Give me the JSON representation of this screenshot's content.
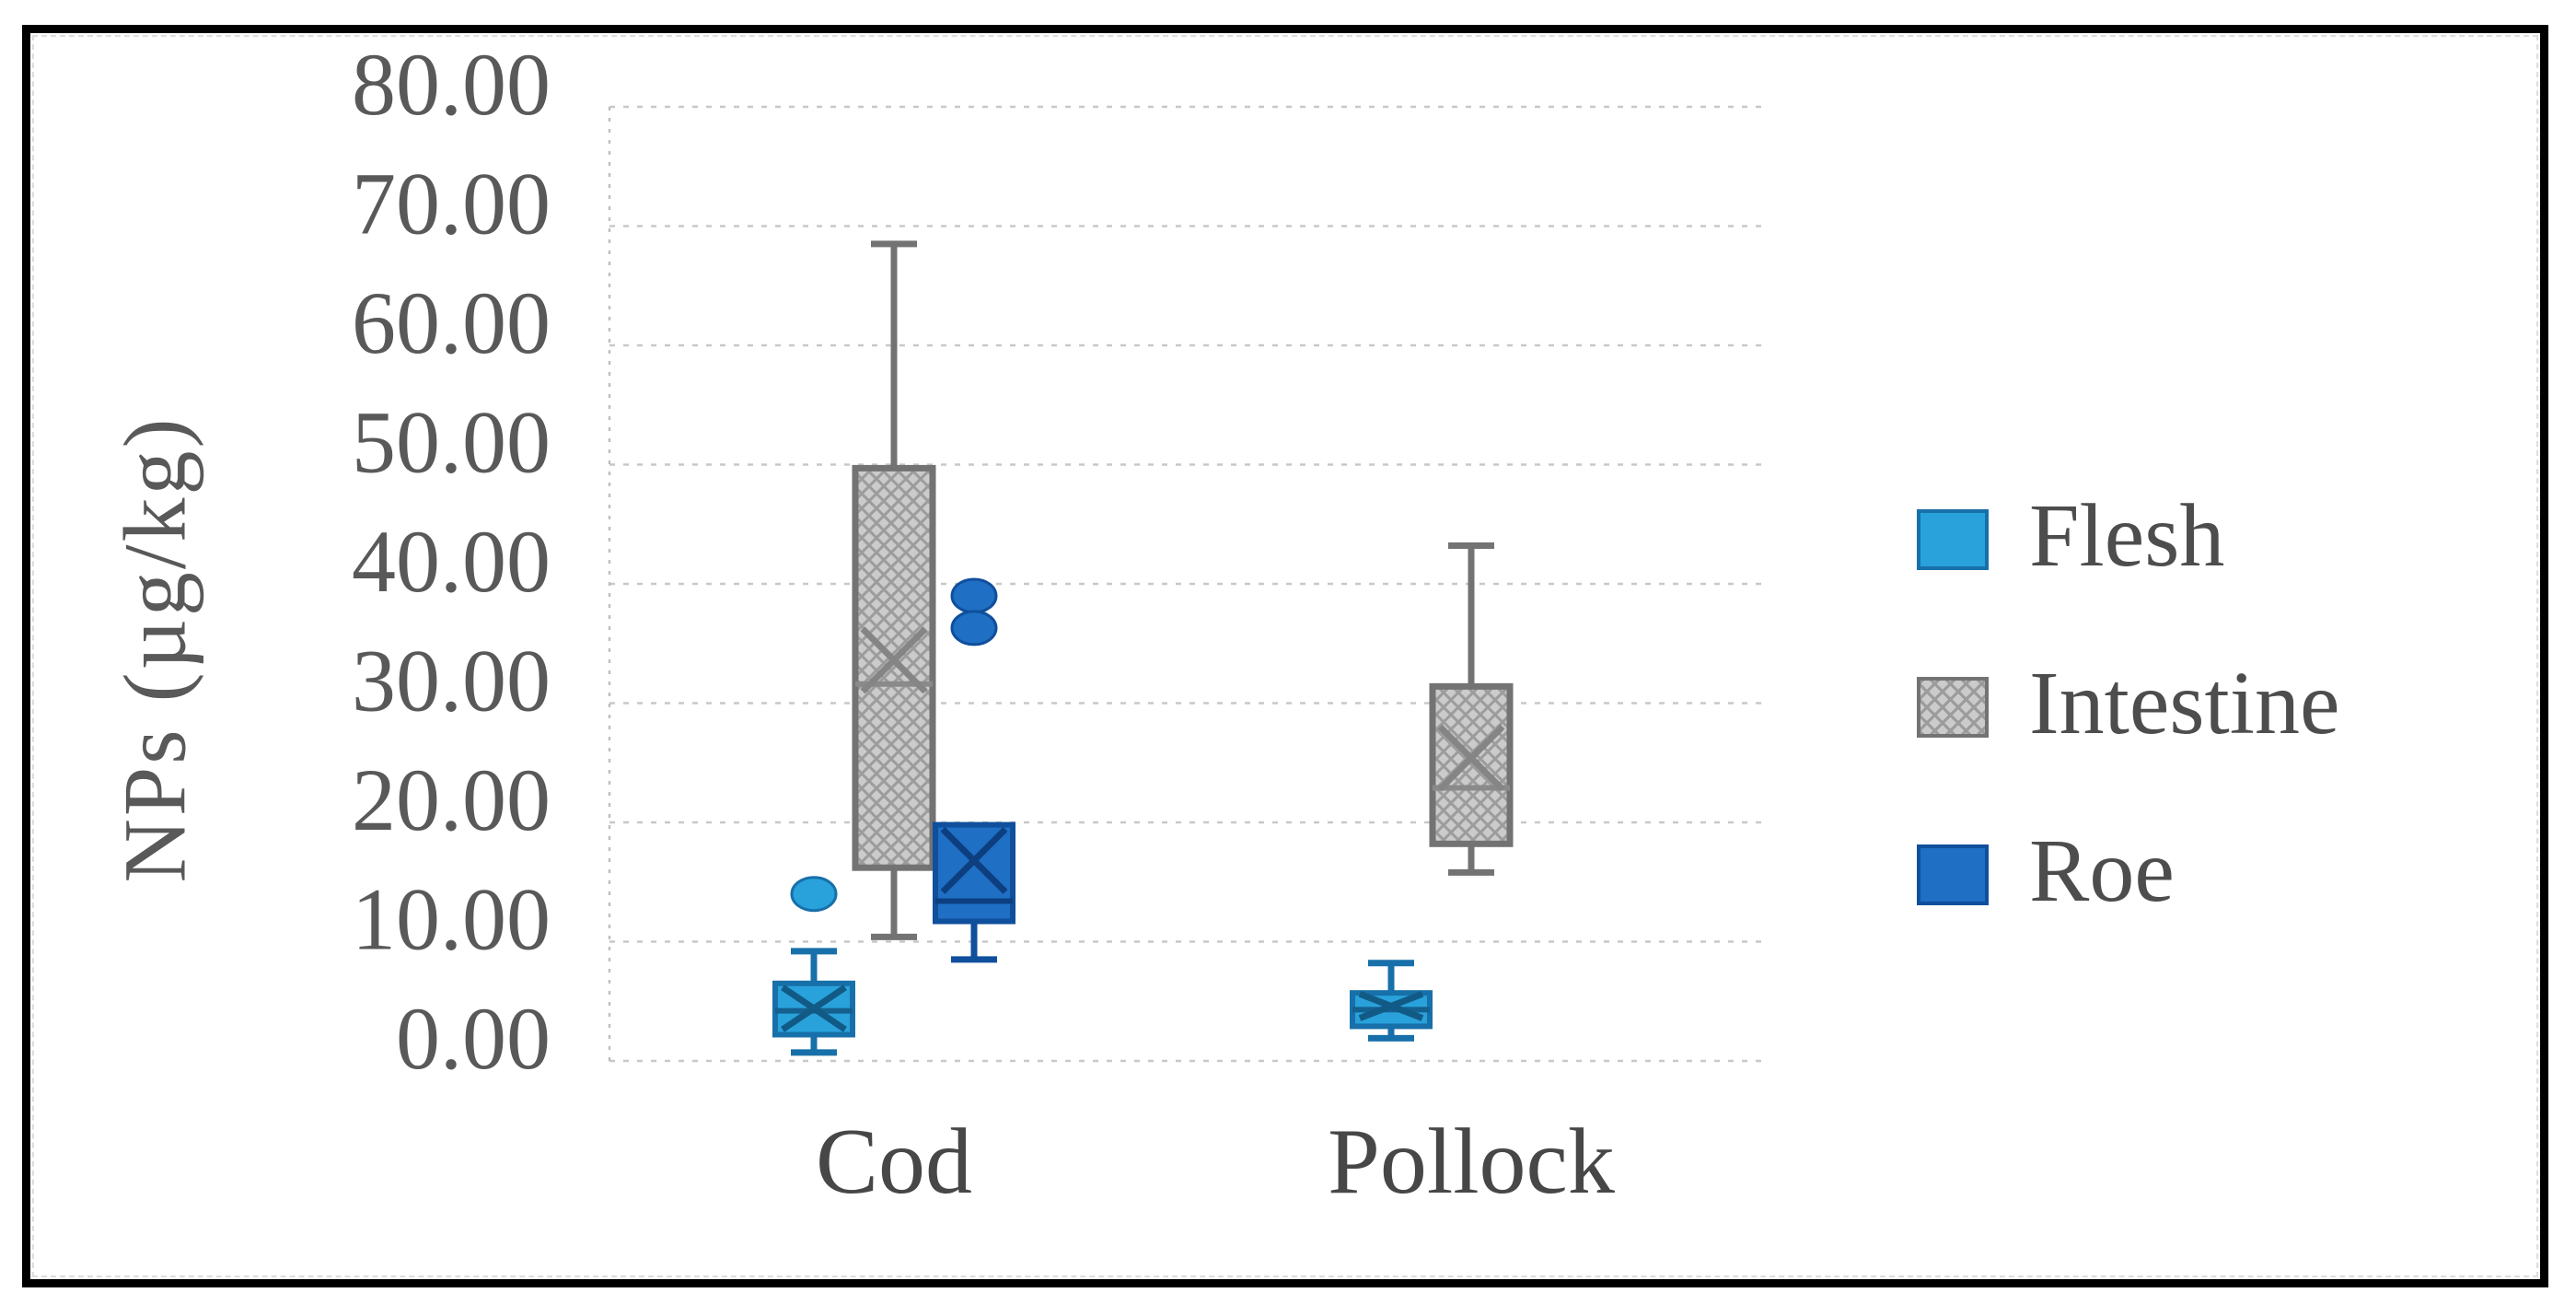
{
  "figure": {
    "background": "#ffffff",
    "border_color": "#000000"
  },
  "y_axis": {
    "title": "NPs (µg/kg)"
  },
  "x_axis": {
    "labels": [
      "Cod",
      "Pollock"
    ]
  },
  "legend": {
    "position": "right",
    "items": [
      {
        "label": "Flesh",
        "fill": "#29A2DB",
        "border": "#1770A9",
        "pattern": null,
        "hatch": null
      },
      {
        "label": "Intestine",
        "fill": "#CBCBCB",
        "border": "#737373",
        "pattern": "crosshatch",
        "hatch": "#9C9C9C"
      },
      {
        "label": "Roe",
        "fill": "#1F6FC4",
        "border": "#0F4F9C",
        "pattern": null,
        "hatch": null
      }
    ]
  },
  "colors": {
    "gridline": "#C8C8C8",
    "axis_line": "#BFBFBF",
    "tick_text": "#595959",
    "category_text": "#474747",
    "legend_text": "#4D4D4D",
    "ylabel_text": "#595959"
  },
  "chart_data": {
    "type": "box",
    "title": "",
    "xlabel": "",
    "ylabel": "NPs (µg/kg)",
    "categories": [
      "Cod",
      "Pollock"
    ],
    "ylim": [
      0,
      80
    ],
    "ytick_step": 10,
    "y_ticks": [
      "80.00",
      "70.00",
      "60.00",
      "50.00",
      "40.00",
      "30.00",
      "20.00",
      "10.00",
      "0.00"
    ],
    "grid": "horizontal-dashed",
    "legend_position": "right",
    "series": [
      {
        "name": "Flesh",
        "fill": "#29A2DB",
        "stroke": "#1770A9",
        "median_color": "#14608F",
        "mean_color": "#125A86",
        "pattern": null,
        "hatch": null,
        "boxes": [
          {
            "category": "Cod",
            "low": 0.7,
            "q1": 2.2,
            "median": 4.2,
            "mean": 4.4,
            "q3": 6.5,
            "high": 9.2,
            "outliers": [
              14.0
            ]
          },
          {
            "category": "Pollock",
            "low": 1.9,
            "q1": 2.9,
            "median": 4.3,
            "mean": 4.6,
            "q3": 5.7,
            "high": 8.2,
            "outliers": []
          }
        ]
      },
      {
        "name": "Intestine",
        "fill": "#CBCBCB",
        "stroke": "#737373",
        "median_color": "#8A8A8A",
        "mean_color": "#858585",
        "pattern": "crosshatch",
        "hatch": "#9C9C9C",
        "boxes": [
          {
            "category": "Cod",
            "low": 10.4,
            "q1": 16.2,
            "median": 31.6,
            "mean": 33.6,
            "q3": 49.7,
            "high": 68.5,
            "outliers": []
          },
          {
            "category": "Pollock",
            "low": 15.8,
            "q1": 18.2,
            "median": 22.9,
            "mean": 25.4,
            "q3": 31.4,
            "high": 43.2,
            "outliers": []
          }
        ]
      },
      {
        "name": "Roe",
        "fill": "#1F6FC4",
        "stroke": "#0F4F9C",
        "median_color": "#0D3F80",
        "mean_color": "#0D3F80",
        "pattern": null,
        "hatch": null,
        "boxes": [
          {
            "category": "Cod",
            "low": 8.5,
            "q1": 11.7,
            "median": 13.4,
            "mean": 16.8,
            "q3": 19.8,
            "high": null,
            "outliers": [
              39.0,
              36.3
            ]
          },
          null
        ]
      }
    ]
  }
}
